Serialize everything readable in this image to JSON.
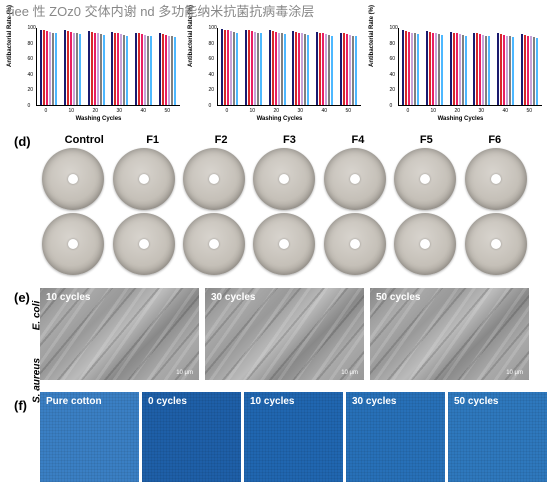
{
  "watermark": "fiee 性 ZOz0 交体内谢 nd 多功能纳米抗菌抗病毒涂层",
  "panels": {
    "d": "(d)",
    "e": "(e)",
    "f": "(f)"
  },
  "charts": {
    "ylabel": "Antibacterial Rate (%)",
    "xlabel": "Washing Cycles",
    "ylim": [
      0,
      100
    ],
    "yticks": [
      0,
      20,
      40,
      60,
      80,
      100
    ],
    "xticks": [
      0,
      10,
      20,
      30,
      40,
      50
    ],
    "series_colors": [
      "#1a1a6e",
      "#d62828",
      "#e91e63",
      "#c8a2d8",
      "#808080",
      "#4db8ff"
    ],
    "background_color": "#ffffff",
    "panels": [
      {
        "groups": [
          {
            "heights": [
              98,
              97,
              96,
              95,
              94,
              93
            ]
          },
          {
            "heights": [
              97,
              96,
              95,
              94,
              93,
              92
            ]
          },
          {
            "heights": [
              96,
              95,
              94,
              93,
              92,
              91
            ]
          },
          {
            "heights": [
              95,
              94,
              93,
              92,
              91,
              90
            ]
          },
          {
            "heights": [
              94,
              93,
              92,
              91,
              90,
              89
            ]
          },
          {
            "heights": [
              93,
              92,
              91,
              90,
              89,
              88
            ]
          }
        ]
      },
      {
        "groups": [
          {
            "heights": [
              99,
              98,
              97,
              96,
              95,
              94
            ]
          },
          {
            "heights": [
              98,
              97,
              96,
              95,
              94,
              93
            ]
          },
          {
            "heights": [
              97,
              96,
              95,
              94,
              93,
              92
            ]
          },
          {
            "heights": [
              96,
              95,
              94,
              93,
              92,
              91
            ]
          },
          {
            "heights": [
              95,
              94,
              93,
              92,
              91,
              90
            ]
          },
          {
            "heights": [
              94,
              93,
              92,
              91,
              90,
              89
            ]
          }
        ]
      },
      {
        "groups": [
          {
            "heights": [
              97,
              96,
              95,
              94,
              93,
              92
            ]
          },
          {
            "heights": [
              96,
              95,
              94,
              93,
              92,
              91
            ]
          },
          {
            "heights": [
              95,
              94,
              93,
              92,
              91,
              90
            ]
          },
          {
            "heights": [
              94,
              93,
              92,
              91,
              90,
              89
            ]
          },
          {
            "heights": [
              93,
              92,
              91,
              90,
              89,
              88
            ]
          },
          {
            "heights": [
              92,
              91,
              90,
              89,
              88,
              87
            ]
          }
        ]
      }
    ]
  },
  "petri": {
    "headers": [
      "Control",
      "F1",
      "F2",
      "F3",
      "F4",
      "F5",
      "F6"
    ],
    "rows": [
      "E. coli",
      "S. aureus"
    ],
    "dish_color": "#c5c0b8",
    "center_color": "#ffffff"
  },
  "sem": {
    "labels": [
      "10 cycles",
      "30 cycles",
      "50 cycles"
    ],
    "scale_label": "10 μm",
    "tone": "#999999"
  },
  "cotton": {
    "labels": [
      "Pure cotton",
      "0 cycles",
      "10 cycles",
      "30 cycles",
      "50 cycles"
    ],
    "colors": [
      "#3a7fc4",
      "#1e5fa8",
      "#2066b0",
      "#2770b8",
      "#2e78bd"
    ]
  }
}
